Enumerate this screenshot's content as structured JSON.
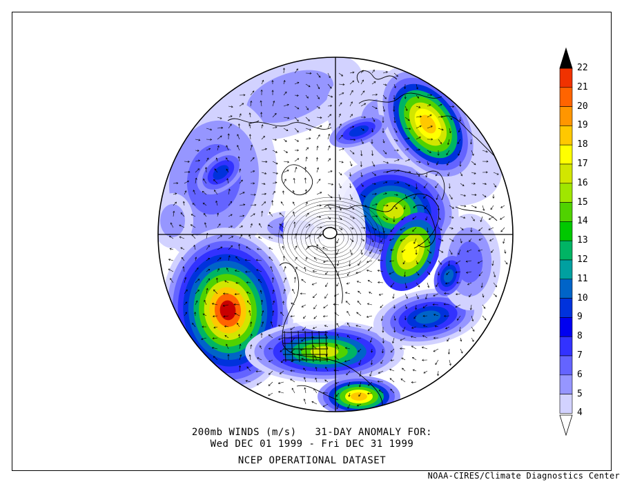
{
  "map": {
    "projection": "north-polar-stereographic",
    "variable": "200mb wind anomaly speed",
    "shading": "filled contours by speed",
    "features": [
      "coastlines",
      "national boundaries",
      "US state boundaries",
      "wind vectors",
      "crosshair meridian lines"
    ]
  },
  "caption": {
    "line1": "200mb WINDS (m/s)   31-DAY ANOMALY FOR:",
    "line2": "Wed DEC 01 1999 - Fri DEC 31 1999",
    "line3": "NCEP OPERATIONAL DATASET"
  },
  "credit": "NOAA-CIRES/Climate Diagnostics Center",
  "colorbar": {
    "levels": [
      "22",
      "21",
      "20",
      "19",
      "18",
      "17",
      "16",
      "15",
      "14",
      "13",
      "12",
      "11",
      "10",
      "9",
      "8",
      "7",
      "6",
      "5",
      "4"
    ],
    "colors": [
      "#c80000",
      "#f03200",
      "#ff6400",
      "#ff9600",
      "#ffc800",
      "#ffff00",
      "#d2e600",
      "#a0e600",
      "#50d200",
      "#00c800",
      "#00b464",
      "#00a0a0",
      "#0064c8",
      "#0032dc",
      "#0000f0",
      "#3232ff",
      "#6464ff",
      "#9696ff",
      "#d2d2ff",
      "#ffffff"
    ]
  }
}
